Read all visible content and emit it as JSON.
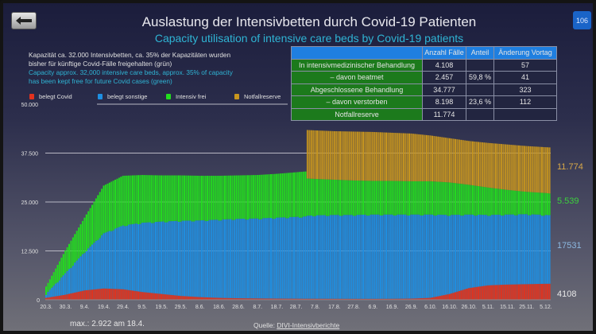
{
  "header": {
    "title": "Auslastung der Intensivbetten durch Covid-19 Patienten",
    "subtitle": "Capacity utilisation of intensive care beds by Covid-19 patients",
    "page_number": "106",
    "back_icon": "arrow-left"
  },
  "note": {
    "de_1": "Kapazität ca. 32.000 Intensivbetten, ca. 35% der Kapazitäten wurden",
    "de_2": "bisher für künftige Covid-Fälle freigehalten (grün)",
    "en_1": "Capacity approx. 32,000 intensive care beds, approx. 35% of capacity",
    "en_2": "has been kept free for future Covid cases (green)"
  },
  "table": {
    "headers": [
      "",
      "Anzahl Fälle",
      "Anteil",
      "Änderung Vortag"
    ],
    "rows": [
      {
        "label": "In intensivmedizinischer Behandlung",
        "count": "4.108",
        "share": "",
        "change": "57"
      },
      {
        "label": "– davon beatmet",
        "count": "2.457",
        "share": "59,8 %",
        "change": "41"
      },
      {
        "label": "Abgeschlossene Behandlung",
        "count": "34.777",
        "share": "",
        "change": "323"
      },
      {
        "label": "– davon verstorben",
        "count": "8.198",
        "share": "23,6 %",
        "change": "112"
      },
      {
        "label": "Notfallreserve",
        "count": "11.774",
        "share": "",
        "change": ""
      }
    ]
  },
  "footer": {
    "max_note": "max.: 2.922 am 18.4.",
    "source_label": "Quelle: ",
    "source_link": "DIVI-Intensivberichte"
  },
  "chart_data": {
    "type": "bar",
    "stacked": true,
    "title": "",
    "xlabel": "",
    "ylabel": "",
    "ylim": [
      0,
      50000
    ],
    "grid": true,
    "legend": "top-left",
    "yticks": [
      "0",
      "12.500",
      "25.000",
      "37.500",
      "50.000"
    ],
    "ytick_values": [
      0,
      12500,
      25000,
      37500,
      50000
    ],
    "xticks": [
      "20.3.",
      "30.3.",
      "9.4.",
      "19.4.",
      "29.4.",
      "9.5.",
      "19.5.",
      "29.5.",
      "8.6.",
      "18.6.",
      "28.6.",
      "8.7.",
      "18.7.",
      "28.7.",
      "7.8.",
      "17.8.",
      "27.8.",
      "6.9.",
      "16.9.",
      "26.9.",
      "6.10.",
      "16.10.",
      "26.10.",
      "5.11.",
      "15.11.",
      "25.11.",
      "5.12."
    ],
    "x_unit": "days since 20.3.",
    "days": [
      0,
      10,
      20,
      30,
      40,
      50,
      60,
      70,
      80,
      90,
      100,
      110,
      120,
      130,
      135,
      136,
      140,
      150,
      160,
      170,
      180,
      190,
      200,
      210,
      220,
      230,
      240,
      250,
      260,
      262
    ],
    "series": [
      {
        "name": "belegt Covid",
        "color": "#e2321e",
        "values": [
          500,
          1300,
          2400,
          2900,
          2700,
          2000,
          1500,
          1000,
          700,
          500,
          400,
          350,
          300,
          280,
          270,
          270,
          270,
          260,
          250,
          250,
          260,
          300,
          500,
          1500,
          3000,
          3700,
          3900,
          4000,
          4100,
          4108
        ]
      },
      {
        "name": "belegt sonstige",
        "color": "#1e8fe2",
        "values": [
          1000,
          5500,
          9800,
          14100,
          16300,
          17700,
          18500,
          19200,
          19600,
          20000,
          20300,
          20450,
          20700,
          20920,
          21030,
          21230,
          21330,
          21440,
          21450,
          21550,
          21540,
          21500,
          21300,
          20200,
          18800,
          18000,
          17900,
          17900,
          17600,
          17531
        ]
      },
      {
        "name": "Intensiv frei",
        "color": "#22de1e",
        "values": [
          1900,
          5800,
          8800,
          12200,
          12700,
          12200,
          11800,
          11600,
          11400,
          11200,
          11100,
          11100,
          11200,
          11400,
          11500,
          9500,
          9300,
          9000,
          8800,
          8600,
          8600,
          8500,
          8500,
          8300,
          7600,
          7000,
          6300,
          5700,
          5600,
          5539
        ]
      },
      {
        "name": "Notfallreserve",
        "color": "#c8961e",
        "values": [
          0,
          0,
          0,
          0,
          0,
          0,
          0,
          0,
          0,
          0,
          0,
          0,
          0,
          0,
          0,
          12400,
          12400,
          12400,
          12500,
          12500,
          12300,
          12200,
          11700,
          11300,
          11200,
          11400,
          11600,
          11700,
          11700,
          11774
        ]
      }
    ],
    "end_labels": [
      {
        "series": "Notfallreserve",
        "text": "11.774",
        "color": "#d8a848"
      },
      {
        "series": "Intensiv frei",
        "text": "5.539",
        "color": "#3cd23c"
      },
      {
        "series": "belegt sonstige",
        "text": "17531",
        "color": "#8cb8e0"
      },
      {
        "series": "belegt Covid",
        "text": "4108",
        "color": "#e8e8e8"
      }
    ]
  }
}
